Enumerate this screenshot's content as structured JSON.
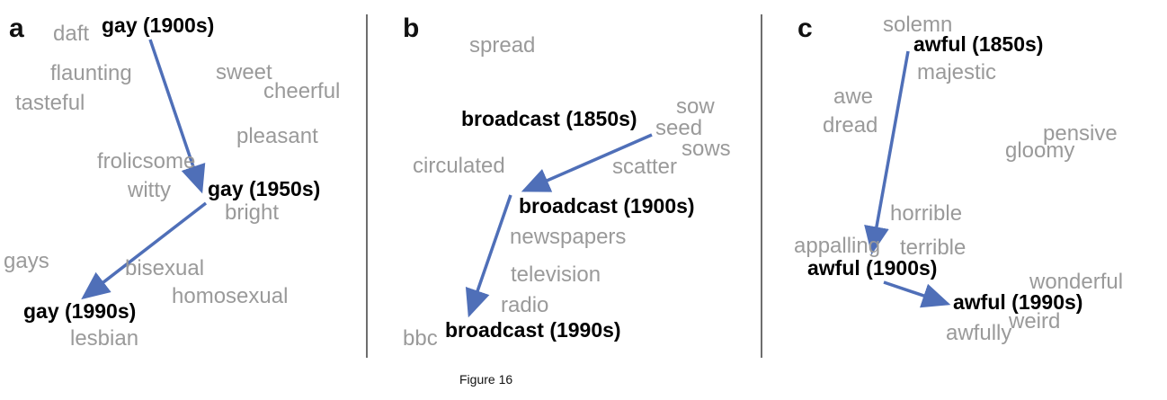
{
  "panels": {
    "a": {
      "label": "a",
      "context": [
        "daft",
        "flaunting",
        "tasteful",
        "sweet",
        "cheerful",
        "pleasant",
        "frolicsome",
        "witty",
        "bright",
        "gays",
        "bisexual",
        "homosexual",
        "lesbian"
      ],
      "focus": [
        "gay (1900s)",
        "gay (1950s)",
        "gay (1990s)"
      ]
    },
    "b": {
      "label": "b",
      "context": [
        "spread",
        "sow",
        "seed",
        "sows",
        "circulated",
        "scatter",
        "newspapers",
        "television",
        "radio",
        "bbc"
      ],
      "focus": [
        "broadcast (1850s)",
        "broadcast (1900s)",
        "broadcast (1990s)"
      ]
    },
    "c": {
      "label": "c",
      "context": [
        "solemn",
        "majestic",
        "awe",
        "dread",
        "pensive",
        "gloomy",
        "horrible",
        "appalling",
        "terrible",
        "wonderful",
        "weird",
        "awfully"
      ],
      "focus": [
        "awful (1850s)",
        "awful (1900s)",
        "awful (1990s)"
      ]
    }
  },
  "caption": "Figure 16",
  "colors": {
    "arrow": "#4f6fb8",
    "context_word": "#9a9a9a",
    "focus_word": "#000000",
    "divider": "#6e6e6e"
  }
}
